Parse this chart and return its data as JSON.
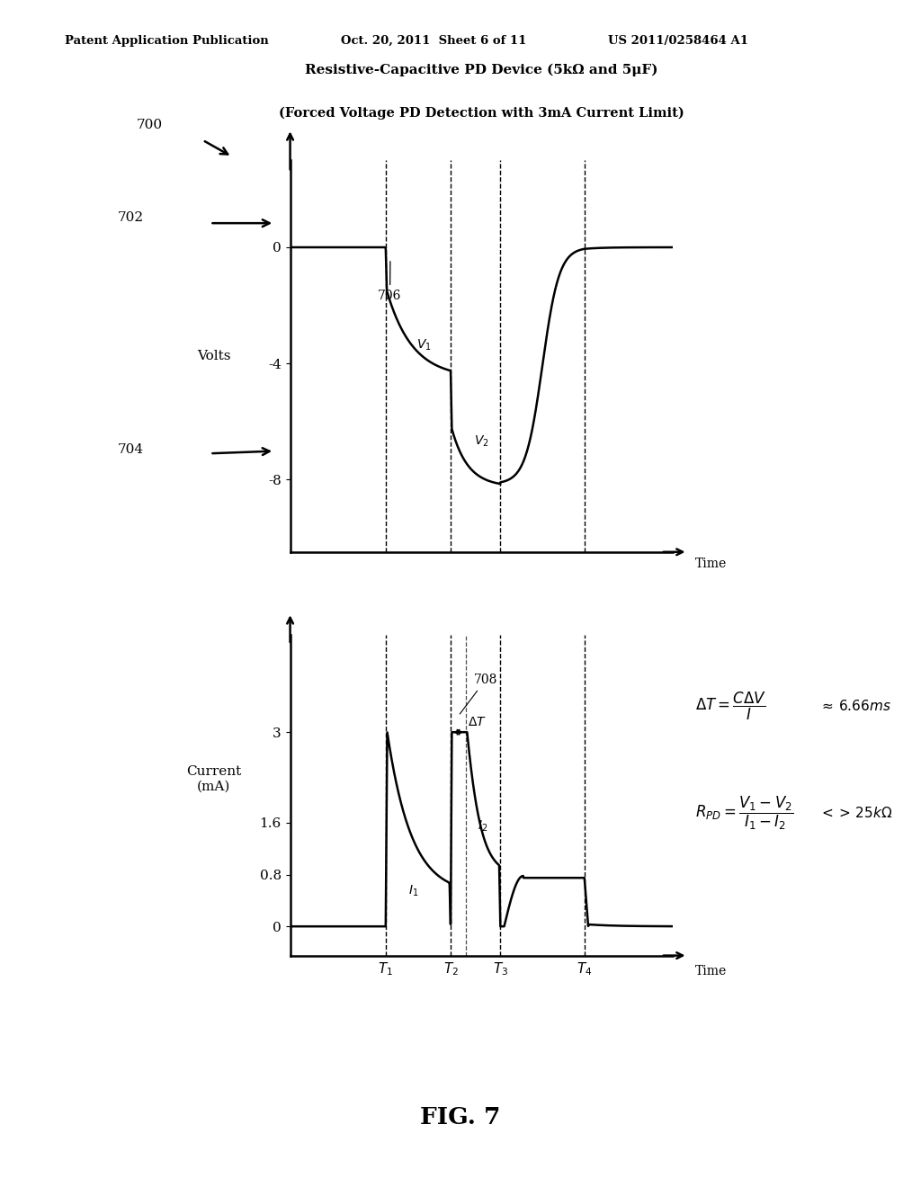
{
  "header_left": "Patent Application Publication",
  "header_mid": "Oct. 20, 2011  Sheet 6 of 11",
  "header_right": "US 2011/0258464 A1",
  "title_line1": "Resistive-Capacitive PD Device (5kΩ and 5μF)",
  "title_line2": "(Forced Voltage PD Detection with 3mA Current Limit)",
  "fig_label": "FIG. 7",
  "bg_color": "#ffffff",
  "T1": 0.25,
  "T2": 0.42,
  "T3": 0.55,
  "T4": 0.77,
  "dT": 0.04
}
